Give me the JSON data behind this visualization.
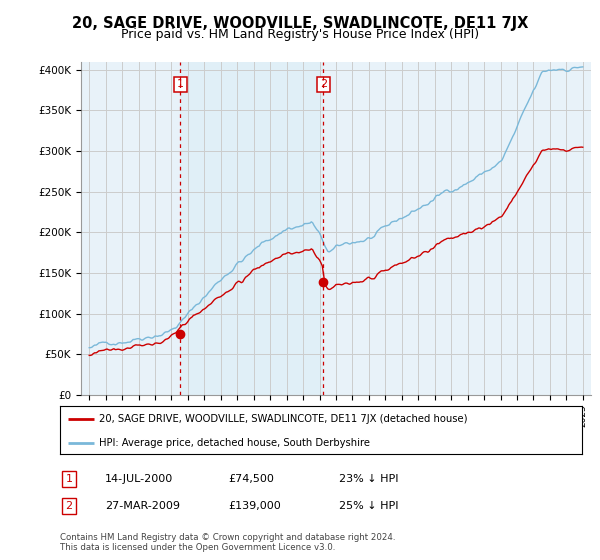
{
  "title": "20, SAGE DRIVE, WOODVILLE, SWADLINCOTE, DE11 7JX",
  "subtitle": "Price paid vs. HM Land Registry's House Price Index (HPI)",
  "ylim": [
    0,
    400000
  ],
  "yticks": [
    0,
    50000,
    100000,
    150000,
    200000,
    250000,
    300000,
    350000,
    400000
  ],
  "ytick_labels": [
    "£0",
    "£50K",
    "£100K",
    "£150K",
    "£200K",
    "£250K",
    "£300K",
    "£350K",
    "£400K"
  ],
  "x_start_year": 1995,
  "x_end_year": 2025,
  "hpi_color": "#7ab8d9",
  "hpi_fill_color": "#ddeef7",
  "price_color": "#cc0000",
  "vline_color": "#cc0000",
  "grid_color": "#cccccc",
  "bg_color": "#e8f2f9",
  "sale1_year": 2000.54,
  "sale1_price": 74500,
  "sale1_label": "1",
  "sale2_year": 2009.24,
  "sale2_price": 139000,
  "sale2_label": "2",
  "legend_line1": "20, SAGE DRIVE, WOODVILLE, SWADLINCOTE, DE11 7JX (detached house)",
  "legend_line2": "HPI: Average price, detached house, South Derbyshire",
  "table_row1": [
    "1",
    "14-JUL-2000",
    "£74,500",
    "23% ↓ HPI"
  ],
  "table_row2": [
    "2",
    "27-MAR-2009",
    "£139,000",
    "25% ↓ HPI"
  ],
  "footnote": "Contains HM Land Registry data © Crown copyright and database right 2024.\nThis data is licensed under the Open Government Licence v3.0.",
  "title_fontsize": 10.5,
  "subtitle_fontsize": 9
}
